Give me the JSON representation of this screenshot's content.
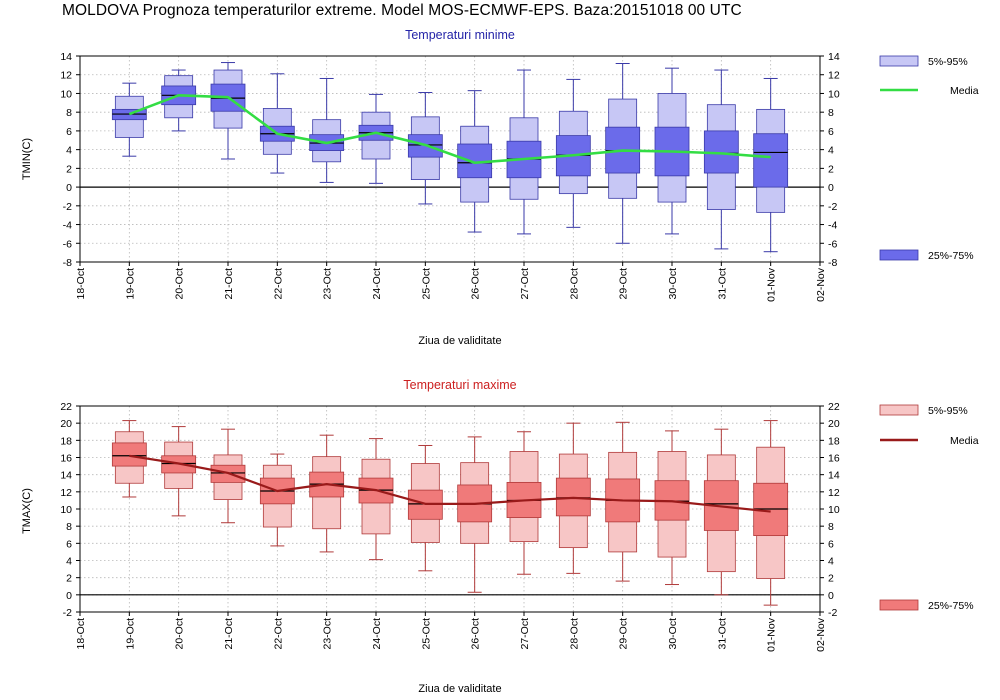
{
  "title": "MOLDOVA  Prognoza temperaturilor extreme.  Model MOS-ECMWF-EPS. Baza:20151018 00 UTC",
  "colors": {
    "tmin_box": "#6b6bea",
    "tmin_whisker_box": "#c7c7f5",
    "tmin_edge": "#3a3aa8",
    "tmin_media": "#33dd44",
    "tmax_box": "#f07a7a",
    "tmax_whisker_box": "#f7c6c6",
    "tmax_edge": "#b03a3a",
    "tmax_media": "#991a1a"
  },
  "chart_data": [
    {
      "type": "box",
      "title": "Temperaturi minime",
      "xlabel": "Ziua de validitate",
      "ylabel": "TMIN(C)",
      "ylim": [
        -8,
        14
      ],
      "yticks": [
        -8,
        -6,
        -4,
        -2,
        0,
        2,
        4,
        6,
        8,
        10,
        12,
        14
      ],
      "grid": true,
      "categories": [
        "18-Oct",
        "19-Oct",
        "20-Oct",
        "21-Oct",
        "22-Oct",
        "23-Oct",
        "24-Oct",
        "25-Oct",
        "26-Oct",
        "27-Oct",
        "28-Oct",
        "29-Oct",
        "30-Oct",
        "31-Oct",
        "01-Nov",
        "02-Nov"
      ],
      "legend": {
        "whisker": "5%-95%",
        "media": "Media",
        "box": "25%-75%",
        "placement": "right"
      },
      "series": [
        {
          "x": "19-Oct",
          "min": 3.3,
          "p5": 5.3,
          "p25": 7.2,
          "median": 7.8,
          "p75": 8.3,
          "p95": 9.7,
          "max": 11.1,
          "media": 7.8
        },
        {
          "x": "20-Oct",
          "min": 6.0,
          "p5": 7.4,
          "p25": 8.8,
          "median": 9.8,
          "p75": 10.8,
          "p95": 11.9,
          "max": 12.5,
          "media": 9.8
        },
        {
          "x": "21-Oct",
          "min": 3.0,
          "p5": 6.3,
          "p25": 8.1,
          "median": 9.5,
          "p75": 11.0,
          "p95": 12.5,
          "max": 13.3,
          "media": 9.6
        },
        {
          "x": "22-Oct",
          "min": 1.5,
          "p5": 3.5,
          "p25": 4.9,
          "median": 5.7,
          "p75": 6.5,
          "p95": 8.4,
          "max": 12.1,
          "media": 5.7
        },
        {
          "x": "23-Oct",
          "min": 0.5,
          "p5": 2.7,
          "p25": 3.9,
          "median": 4.7,
          "p75": 5.6,
          "p95": 7.2,
          "max": 11.6,
          "media": 4.7
        },
        {
          "x": "24-Oct",
          "min": 0.4,
          "p5": 3.0,
          "p25": 5.0,
          "median": 5.8,
          "p75": 6.6,
          "p95": 8.0,
          "max": 9.9,
          "media": 5.8
        },
        {
          "x": "25-Oct",
          "min": -1.8,
          "p5": 0.8,
          "p25": 3.2,
          "median": 4.5,
          "p75": 5.6,
          "p95": 7.5,
          "max": 10.1,
          "media": 4.5
        },
        {
          "x": "26-Oct",
          "min": -4.8,
          "p5": -1.6,
          "p25": 1.0,
          "median": 2.6,
          "p75": 4.6,
          "p95": 6.5,
          "max": 10.3,
          "media": 2.6
        },
        {
          "x": "27-Oct",
          "min": -5.0,
          "p5": -1.3,
          "p25": 1.0,
          "median": 3.0,
          "p75": 4.9,
          "p95": 7.4,
          "max": 12.5,
          "media": 3.0
        },
        {
          "x": "28-Oct",
          "min": -4.3,
          "p5": -0.7,
          "p25": 1.2,
          "median": 3.4,
          "p75": 5.5,
          "p95": 8.1,
          "max": 11.5,
          "media": 3.4
        },
        {
          "x": "29-Oct",
          "min": -6.0,
          "p5": -1.2,
          "p25": 1.5,
          "median": 3.9,
          "p75": 6.4,
          "p95": 9.4,
          "max": 13.2,
          "media": 3.9
        },
        {
          "x": "30-Oct",
          "min": -5.0,
          "p5": -1.6,
          "p25": 1.2,
          "median": 3.8,
          "p75": 6.4,
          "p95": 10.0,
          "max": 12.7,
          "media": 3.8
        },
        {
          "x": "31-Oct",
          "min": -6.6,
          "p5": -2.4,
          "p25": 1.5,
          "median": 3.6,
          "p75": 6.0,
          "p95": 8.8,
          "max": 12.5,
          "media": 3.6
        },
        {
          "x": "01-Nov",
          "min": -6.9,
          "p5": -2.7,
          "p25": 0.0,
          "median": 3.7,
          "p75": 5.7,
          "p95": 8.3,
          "max": 11.6,
          "media": 3.2
        }
      ]
    },
    {
      "type": "box",
      "title": "Temperaturi maxime",
      "xlabel": "Ziua de validitate",
      "ylabel": "TMAX(C)",
      "ylim": [
        -2,
        22
      ],
      "yticks": [
        -2,
        0,
        2,
        4,
        6,
        8,
        10,
        12,
        14,
        16,
        18,
        20,
        22
      ],
      "grid": true,
      "categories": [
        "18-Oct",
        "19-Oct",
        "20-Oct",
        "21-Oct",
        "22-Oct",
        "23-Oct",
        "24-Oct",
        "25-Oct",
        "26-Oct",
        "27-Oct",
        "28-Oct",
        "29-Oct",
        "30-Oct",
        "31-Oct",
        "01-Nov",
        "02-Nov"
      ],
      "legend": {
        "whisker": "5%-95%",
        "media": "Media",
        "box": "25%-75%",
        "placement": "right"
      },
      "series": [
        {
          "x": "19-Oct",
          "min": 11.4,
          "p5": 13.0,
          "p25": 15.0,
          "median": 16.2,
          "p75": 17.7,
          "p95": 19.0,
          "max": 20.3,
          "media": 16.2
        },
        {
          "x": "20-Oct",
          "min": 9.2,
          "p5": 12.4,
          "p25": 14.2,
          "median": 15.3,
          "p75": 16.2,
          "p95": 17.8,
          "max": 19.6,
          "media": 15.3
        },
        {
          "x": "21-Oct",
          "min": 8.4,
          "p5": 11.1,
          "p25": 13.1,
          "median": 14.2,
          "p75": 15.1,
          "p95": 16.3,
          "max": 19.3,
          "media": 14.2
        },
        {
          "x": "22-Oct",
          "min": 5.7,
          "p5": 7.9,
          "p25": 10.6,
          "median": 12.1,
          "p75": 13.6,
          "p95": 15.1,
          "max": 16.4,
          "media": 12.1
        },
        {
          "x": "23-Oct",
          "min": 5.0,
          "p5": 7.7,
          "p25": 11.4,
          "median": 12.9,
          "p75": 14.3,
          "p95": 16.1,
          "max": 18.6,
          "media": 12.9
        },
        {
          "x": "24-Oct",
          "min": 4.1,
          "p5": 7.1,
          "p25": 10.7,
          "median": 12.2,
          "p75": 13.6,
          "p95": 15.8,
          "max": 18.2,
          "media": 12.2
        },
        {
          "x": "25-Oct",
          "min": 2.8,
          "p5": 6.1,
          "p25": 8.8,
          "median": 10.6,
          "p75": 12.2,
          "p95": 15.3,
          "max": 17.4,
          "media": 10.6
        },
        {
          "x": "26-Oct",
          "min": 0.3,
          "p5": 6.0,
          "p25": 8.5,
          "median": 10.6,
          "p75": 12.8,
          "p95": 15.4,
          "max": 18.4,
          "media": 10.6
        },
        {
          "x": "27-Oct",
          "min": 2.4,
          "p5": 6.2,
          "p25": 9.0,
          "median": 11.0,
          "p75": 13.1,
          "p95": 16.7,
          "max": 19.0,
          "media": 11.0
        },
        {
          "x": "28-Oct",
          "min": 2.5,
          "p5": 5.5,
          "p25": 9.2,
          "median": 11.3,
          "p75": 13.6,
          "p95": 16.4,
          "max": 20.0,
          "media": 11.3
        },
        {
          "x": "29-Oct",
          "min": 1.6,
          "p5": 5.0,
          "p25": 8.5,
          "median": 11.0,
          "p75": 13.5,
          "p95": 16.6,
          "max": 20.1,
          "media": 11.0
        },
        {
          "x": "30-Oct",
          "min": 1.2,
          "p5": 4.4,
          "p25": 8.7,
          "median": 10.9,
          "p75": 13.3,
          "p95": 16.7,
          "max": 19.1,
          "media": 10.9
        },
        {
          "x": "31-Oct",
          "min": 0.0,
          "p5": 2.7,
          "p25": 7.5,
          "median": 10.6,
          "p75": 13.3,
          "p95": 16.3,
          "max": 19.3,
          "media": 10.3
        },
        {
          "x": "01-Nov",
          "min": -1.2,
          "p5": 1.9,
          "p25": 6.9,
          "median": 10.0,
          "p75": 13.0,
          "p95": 17.2,
          "max": 20.3,
          "media": 9.7
        }
      ]
    }
  ]
}
